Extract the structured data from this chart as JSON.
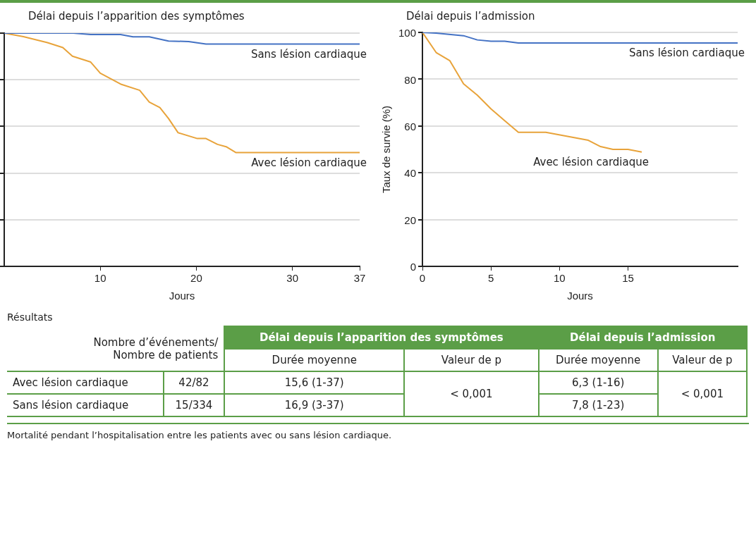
{
  "chart_data": [
    {
      "type": "line",
      "title": "Délai depuis l’apparition des symptômes",
      "xlabel": "Jours",
      "xlim": [
        0,
        37
      ],
      "xticks": [
        10,
        20,
        30,
        37
      ],
      "ylim": [
        0,
        100
      ],
      "yticks": [
        0,
        20,
        40,
        60,
        80,
        100
      ],
      "grid": "y",
      "marker": "none",
      "line_style": "solid",
      "tick_labels": "x",
      "legend": false,
      "series": [
        {
          "name": "Sans lésion cardiaque",
          "color": "#4472c4",
          "x": [
            0,
            7.2,
            9,
            12.1,
            13.4,
            15.1,
            17.1,
            19.2,
            21,
            37
          ],
          "values": [
            100,
            100,
            99.4,
            99.4,
            98.4,
            98.4,
            96.6,
            96.4,
            95.3,
            95.3
          ]
        },
        {
          "name": "Avec lésion cardiaque",
          "color": "#e8a33a",
          "x": [
            0,
            2,
            4.5,
            6.1,
            7.1,
            9,
            10,
            12.2,
            14.1,
            15.1,
            16.2,
            17.1,
            18.1,
            20.1,
            21,
            22.2,
            23.1,
            24.1,
            37
          ],
          "values": [
            100,
            98.5,
            95.9,
            93.8,
            90.1,
            87.6,
            82.8,
            78,
            75.5,
            70.4,
            68.1,
            63.4,
            57.3,
            54.8,
            54.8,
            52.3,
            51.3,
            48.8,
            48.8
          ]
        }
      ]
    },
    {
      "type": "line",
      "title": "Délai depuis l’admission",
      "xlabel": "Jours",
      "ylabel": "Taux de survie (%)",
      "xlim": [
        0,
        23
      ],
      "xticks": [
        0,
        5,
        10,
        15
      ],
      "ylim": [
        0,
        100
      ],
      "yticks": [
        0,
        20,
        40,
        60,
        80,
        100
      ],
      "grid": "y",
      "marker": "none",
      "line_style": "solid",
      "legend": false,
      "series": [
        {
          "name": "Sans lésion cardiaque",
          "color": "#4472c4",
          "x": [
            0,
            1,
            3,
            4,
            5,
            6,
            7,
            23
          ],
          "values": [
            100,
            99.7,
            98.6,
            96.8,
            96.2,
            96.2,
            95.5,
            95.5
          ]
        },
        {
          "name": "Avec lésion cardiaque",
          "color": "#e8a33a",
          "x": [
            0,
            1,
            2,
            3,
            4,
            5,
            6,
            7,
            9,
            12.1,
            13,
            13.9,
            15,
            16
          ],
          "values": [
            100,
            91.4,
            87.9,
            78,
            73.2,
            67.3,
            62.3,
            57.3,
            57.3,
            53.9,
            51.2,
            50,
            50,
            48.9
          ]
        }
      ]
    },
    {
      "type": "other",
      "title": "Résultats",
      "categories": [
        "Nombre d’événements/\nNombre de patients",
        "Durée moyenne",
        "Valeur de p",
        "Durée moyenne",
        "Valeur de p"
      ],
      "y_categories": [
        "Avec lésion cardiaque",
        "Sans lésion cardiaque"
      ],
      "cell_labels": [
        [
          "42/82",
          "15,6 (1-37)",
          "< 0,001",
          "6,3 (1-16)",
          "< 0,001"
        ],
        [
          "15/334",
          "16,9 (3-37)",
          null,
          "7,8 (1-23)",
          null
        ]
      ],
      "annotations": [
        "Délai depuis l’apparition des symptômes",
        "Délai depuis l’admission",
        "Mortalité pendant l’hospitalisation entre les patients avec ou sans lésion cardiaque."
      ]
    }
  ]
}
